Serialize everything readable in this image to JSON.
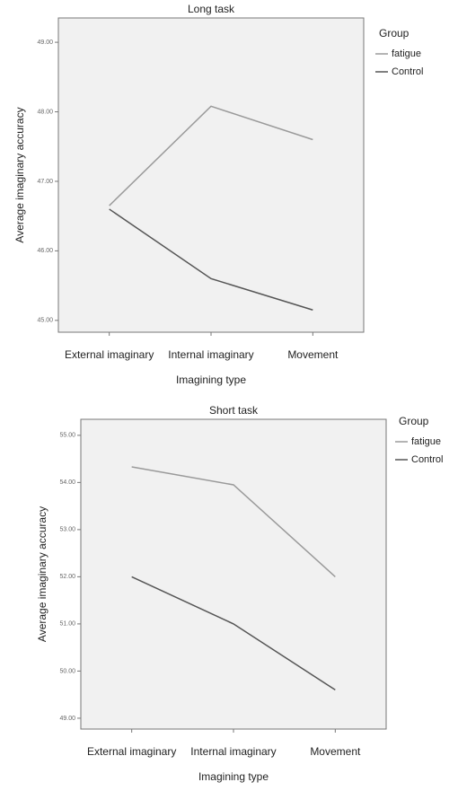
{
  "chart_data": [
    {
      "type": "line",
      "title": "Long task",
      "x_label": "Imagining type",
      "y_label": "Average imaginary accuracy",
      "legend_title": "Group",
      "categories": [
        "External imaginary",
        "Internal imaginary",
        "Movement"
      ],
      "series": [
        {
          "name": "fatigue",
          "color": "#9a9a9a",
          "values": [
            46.65,
            48.08,
            47.6
          ]
        },
        {
          "name": "Control",
          "color": "#555555",
          "values": [
            46.6,
            45.6,
            45.15
          ]
        }
      ],
      "ylim": [
        44.83,
        49.35
      ],
      "yticks": [
        {
          "value": 45,
          "label": "45.00"
        },
        {
          "value": 46,
          "label": "46.00"
        },
        {
          "value": 47,
          "label": "47.00"
        },
        {
          "value": 48,
          "label": "48.00"
        },
        {
          "value": 49,
          "label": "49.00"
        }
      ]
    },
    {
      "type": "line",
      "title": "Short task",
      "x_label": "Imagining type",
      "y_label": "Average imaginary accuracy",
      "legend_title": "Group",
      "categories": [
        "External imaginary",
        "Internal imaginary",
        "Movement"
      ],
      "series": [
        {
          "name": "fatigue",
          "color": "#9a9a9a",
          "values": [
            54.33,
            53.95,
            52.0
          ]
        },
        {
          "name": "Control",
          "color": "#555555",
          "values": [
            52.0,
            51.0,
            49.6
          ]
        }
      ],
      "ylim": [
        48.77,
        55.34
      ],
      "yticks": [
        {
          "value": 49,
          "label": "49.00"
        },
        {
          "value": 50,
          "label": "50.00"
        },
        {
          "value": 51,
          "label": "51.00"
        },
        {
          "value": 52,
          "label": "52.00"
        },
        {
          "value": 53,
          "label": "53.00"
        },
        {
          "value": 54,
          "label": "54.00"
        },
        {
          "value": 55,
          "label": "55.00"
        }
      ]
    }
  ]
}
